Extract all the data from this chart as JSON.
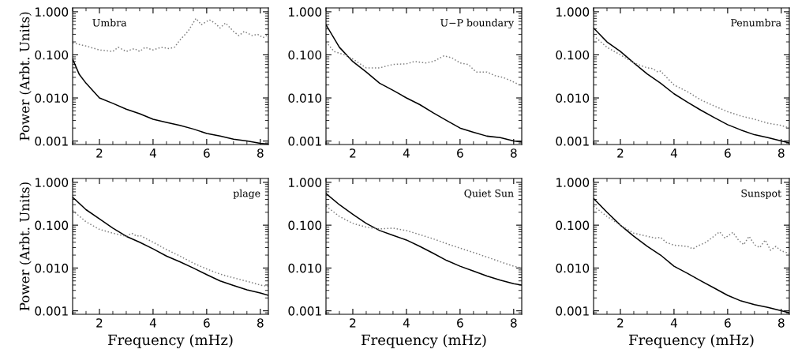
{
  "chart_data": [
    {
      "type": "line",
      "title": "Umbra",
      "ylabel": "Power (Arbt. Units)",
      "log": "y",
      "xlim": [
        1,
        8.3
      ],
      "ylim": [
        0.00083,
        1.23
      ],
      "xticks": [
        2,
        4,
        6,
        8
      ],
      "yticks": [
        {
          "value": 0.001,
          "label": "0.001"
        },
        {
          "value": 0.01,
          "label": "0.010"
        },
        {
          "value": 0.1,
          "label": "0.100"
        },
        {
          "value": 1,
          "label": "1.000"
        }
      ],
      "grid": false,
      "marker": "none",
      "series": [
        {
          "color": "#000000",
          "line_style": "solid",
          "x": [
            1,
            1.25,
            1.5,
            2,
            2.5,
            3,
            3.5,
            4,
            4.5,
            5,
            5.5,
            6,
            6.5,
            7,
            7.5,
            8,
            8.3
          ],
          "values": [
            0.08,
            0.035,
            0.022,
            0.01,
            0.0075,
            0.0055,
            0.0043,
            0.0032,
            0.0027,
            0.0023,
            0.0019,
            0.0015,
            0.0013,
            0.0011,
            0.001,
            0.00088,
            0.00085
          ]
        },
        {
          "color": "#808080",
          "line_style": "dotted",
          "x": [
            1,
            1.5,
            2,
            2.5,
            2.7,
            3,
            3.3,
            3.5,
            3.7,
            4,
            4.3,
            4.6,
            4.8,
            5,
            5.3,
            5.6,
            5.8,
            6.1,
            6.3,
            6.5,
            6.7,
            7,
            7.2,
            7.4,
            7.7,
            7.9,
            8.1,
            8.3
          ],
          "values": [
            0.19,
            0.16,
            0.13,
            0.12,
            0.15,
            0.12,
            0.14,
            0.12,
            0.15,
            0.13,
            0.15,
            0.14,
            0.15,
            0.22,
            0.35,
            0.7,
            0.5,
            0.65,
            0.55,
            0.42,
            0.55,
            0.35,
            0.28,
            0.35,
            0.28,
            0.3,
            0.25,
            0.3
          ]
        }
      ]
    },
    {
      "type": "line",
      "title": "U−P boundary",
      "log": "y",
      "xlim": [
        1,
        8.3
      ],
      "ylim": [
        0.00083,
        1.23
      ],
      "xticks": [
        2,
        4,
        6,
        8
      ],
      "yticks": [
        {
          "value": 0.001,
          "label": "0.001"
        },
        {
          "value": 0.01,
          "label": "0.010"
        },
        {
          "value": 0.1,
          "label": "0.100"
        },
        {
          "value": 1,
          "label": "1.000"
        }
      ],
      "grid": false,
      "marker": "none",
      "series": [
        {
          "color": "#000000",
          "line_style": "solid",
          "x": [
            1,
            1.5,
            2,
            2.5,
            3,
            3.5,
            4,
            4.5,
            5,
            5.5,
            6,
            6.5,
            7,
            7.5,
            8,
            8.3
          ],
          "values": [
            0.5,
            0.15,
            0.07,
            0.04,
            0.022,
            0.015,
            0.01,
            0.007,
            0.0045,
            0.003,
            0.002,
            0.0016,
            0.0013,
            0.0012,
            0.001,
            0.00095
          ]
        },
        {
          "color": "#808080",
          "line_style": "dotted",
          "x": [
            1,
            1.3,
            1.7,
            2,
            2.5,
            3,
            3.5,
            4,
            4.3,
            4.7,
            5,
            5.4,
            5.7,
            6,
            6.3,
            6.6,
            7,
            7.3,
            7.6,
            7.9,
            8.3
          ],
          "values": [
            0.2,
            0.12,
            0.1,
            0.08,
            0.05,
            0.05,
            0.06,
            0.062,
            0.07,
            0.065,
            0.07,
            0.095,
            0.085,
            0.065,
            0.06,
            0.04,
            0.04,
            0.033,
            0.03,
            0.025,
            0.019
          ]
        }
      ]
    },
    {
      "type": "line",
      "title": "Penumbra",
      "log": "y",
      "xlim": [
        1,
        8.3
      ],
      "ylim": [
        0.00083,
        1.23
      ],
      "xticks": [
        2,
        4,
        6,
        8
      ],
      "yticks": [
        {
          "value": 0.001,
          "label": "0.001"
        },
        {
          "value": 0.01,
          "label": "0.010"
        },
        {
          "value": 0.1,
          "label": "0.100"
        },
        {
          "value": 1,
          "label": "1.000"
        }
      ],
      "grid": false,
      "marker": "none",
      "series": [
        {
          "color": "#000000",
          "line_style": "solid",
          "x": [
            1,
            1.5,
            2,
            2.5,
            3,
            3.5,
            4,
            4.5,
            5,
            5.5,
            6,
            6.5,
            7,
            7.5,
            8,
            8.3
          ],
          "values": [
            0.42,
            0.2,
            0.12,
            0.065,
            0.036,
            0.022,
            0.0125,
            0.008,
            0.0052,
            0.0035,
            0.0024,
            0.0018,
            0.0014,
            0.0012,
            0.001,
            0.0009
          ]
        },
        {
          "color": "#808080",
          "line_style": "dotted",
          "x": [
            1,
            1.5,
            2,
            2.5,
            3,
            3.2,
            3.4,
            3.5,
            4,
            4.5,
            5,
            5.5,
            6,
            6.5,
            7,
            7.5,
            8,
            8.3
          ],
          "values": [
            0.28,
            0.15,
            0.1,
            0.065,
            0.05,
            0.048,
            0.04,
            0.042,
            0.02,
            0.014,
            0.009,
            0.0065,
            0.0048,
            0.0038,
            0.0032,
            0.0026,
            0.0023,
            0.002
          ]
        }
      ]
    },
    {
      "type": "line",
      "title": "plage",
      "xlabel": "Frequency (mHz)",
      "ylabel": "Power (Arbt. Units)",
      "log": "y",
      "xlim": [
        1,
        8.3
      ],
      "ylim": [
        0.00083,
        1.23
      ],
      "xticks": [
        2,
        4,
        6,
        8
      ],
      "yticks": [
        {
          "value": 0.001,
          "label": "0.001"
        },
        {
          "value": 0.01,
          "label": "0.010"
        },
        {
          "value": 0.1,
          "label": "0.100"
        },
        {
          "value": 1,
          "label": "1.000"
        }
      ],
      "grid": false,
      "marker": "none",
      "series": [
        {
          "color": "#000000",
          "line_style": "solid",
          "x": [
            1,
            1.5,
            2,
            2.5,
            3,
            3.5,
            4,
            4.5,
            5,
            5.5,
            6,
            6.5,
            7,
            7.5,
            8,
            8.3
          ],
          "values": [
            0.45,
            0.23,
            0.14,
            0.085,
            0.055,
            0.04,
            0.028,
            0.019,
            0.014,
            0.01,
            0.007,
            0.005,
            0.0039,
            0.0031,
            0.0026,
            0.0023
          ]
        },
        {
          "color": "#808080",
          "line_style": "dotted",
          "x": [
            1,
            1.5,
            2,
            2.5,
            3,
            3.2,
            3.4,
            3.5,
            4,
            4.5,
            5,
            5.5,
            6,
            6.5,
            7,
            7.5,
            8,
            8.3
          ],
          "values": [
            0.22,
            0.12,
            0.08,
            0.065,
            0.055,
            0.065,
            0.055,
            0.058,
            0.04,
            0.027,
            0.019,
            0.013,
            0.0095,
            0.0072,
            0.0059,
            0.0049,
            0.004,
            0.0037
          ]
        }
      ]
    },
    {
      "type": "line",
      "title": "Quiet Sun",
      "xlabel": "Frequency (mHz)",
      "log": "y",
      "xlim": [
        1,
        8.3
      ],
      "ylim": [
        0.00083,
        1.23
      ],
      "xticks": [
        2,
        4,
        6,
        8
      ],
      "yticks": [
        {
          "value": 0.001,
          "label": "0.001"
        },
        {
          "value": 0.01,
          "label": "0.010"
        },
        {
          "value": 0.1,
          "label": "0.100"
        },
        {
          "value": 1,
          "label": "1.000"
        }
      ],
      "grid": false,
      "marker": "none",
      "series": [
        {
          "color": "#000000",
          "line_style": "solid",
          "x": [
            1,
            1.5,
            2,
            2.5,
            3,
            3.5,
            4,
            4.5,
            5,
            5.5,
            6,
            6.5,
            7,
            7.5,
            8,
            8.3
          ],
          "values": [
            0.55,
            0.3,
            0.18,
            0.11,
            0.075,
            0.058,
            0.045,
            0.032,
            0.022,
            0.015,
            0.011,
            0.0085,
            0.0065,
            0.0052,
            0.0043,
            0.004
          ]
        },
        {
          "color": "#808080",
          "line_style": "dotted",
          "x": [
            1,
            1.5,
            2,
            2.5,
            3,
            3.5,
            4,
            4.5,
            5,
            5.5,
            6,
            6.5,
            7,
            7.5,
            8,
            8.3
          ],
          "values": [
            0.28,
            0.16,
            0.11,
            0.09,
            0.082,
            0.085,
            0.075,
            0.06,
            0.048,
            0.037,
            0.029,
            0.023,
            0.018,
            0.014,
            0.011,
            0.01
          ]
        }
      ]
    },
    {
      "type": "line",
      "title": "Sunspot",
      "xlabel": "Frequency (mHz)",
      "log": "y",
      "xlim": [
        1,
        8.3
      ],
      "ylim": [
        0.00083,
        1.23
      ],
      "xticks": [
        2,
        4,
        6,
        8
      ],
      "yticks": [
        {
          "value": 0.001,
          "label": "0.001"
        },
        {
          "value": 0.01,
          "label": "0.010"
        },
        {
          "value": 0.1,
          "label": "0.100"
        },
        {
          "value": 1,
          "label": "1.000"
        }
      ],
      "grid": false,
      "marker": "none",
      "series": [
        {
          "color": "#000000",
          "line_style": "solid",
          "x": [
            1,
            1.5,
            2,
            2.5,
            3,
            3.5,
            4,
            4.5,
            5,
            5.5,
            6,
            6.5,
            7,
            7.5,
            8,
            8.3
          ],
          "values": [
            0.42,
            0.2,
            0.1,
            0.055,
            0.032,
            0.02,
            0.011,
            0.0075,
            0.005,
            0.0034,
            0.0023,
            0.0017,
            0.0014,
            0.0012,
            0.001,
            0.0009
          ]
        },
        {
          "color": "#808080",
          "line_style": "dotted",
          "x": [
            1,
            1.5,
            2,
            2.5,
            3,
            3.3,
            3.5,
            3.7,
            4,
            4.5,
            4.7,
            4.9,
            5.2,
            5.4,
            5.7,
            5.9,
            6.2,
            6.4,
            6.6,
            6.8,
            7,
            7.2,
            7.4,
            7.6,
            7.8,
            8,
            8.3
          ],
          "values": [
            0.28,
            0.16,
            0.1,
            0.065,
            0.055,
            0.05,
            0.052,
            0.04,
            0.034,
            0.032,
            0.028,
            0.033,
            0.04,
            0.05,
            0.07,
            0.05,
            0.068,
            0.045,
            0.035,
            0.055,
            0.035,
            0.03,
            0.045,
            0.026,
            0.032,
            0.025,
            0.022
          ]
        }
      ]
    }
  ]
}
